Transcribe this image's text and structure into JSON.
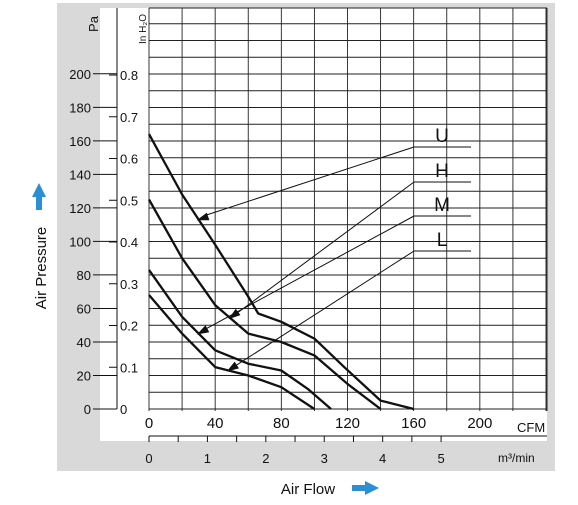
{
  "chart_data": {
    "type": "line",
    "y_axis_label": "Air Pressure",
    "x_axis_label": "Air Flow",
    "pa_unit": "Pa",
    "inh2o_unit": "In H₂O",
    "cfm_unit": "CFM",
    "m3_unit": "m³/min",
    "pa_ticks": [
      "0",
      "20",
      "40",
      "60",
      "80",
      "100",
      "120",
      "140",
      "160",
      "180",
      "200"
    ],
    "inh2o_ticks": [
      "0",
      "0.1",
      "0.2",
      "0.3",
      "0.4",
      "0.5",
      "0.6",
      "0.7",
      "0.8"
    ],
    "cfm_ticks": [
      "0",
      "40",
      "80",
      "120",
      "160",
      "200"
    ],
    "m3_ticks": [
      "0",
      "1",
      "2",
      "3",
      "4",
      "5"
    ],
    "xlim_cfm": [
      0,
      240
    ],
    "ylim_pa": [
      0,
      225
    ],
    "grid": true,
    "series": [
      {
        "name": "U",
        "x": [
          0,
          20,
          40,
          60,
          66,
          80,
          100,
          118,
          140,
          160
        ],
        "y": [
          164,
          128,
          98,
          67,
          57,
          52,
          42,
          25,
          5,
          0
        ]
      },
      {
        "name": "H",
        "x": [
          0,
          20,
          40,
          60,
          80,
          100,
          120,
          140
        ],
        "y": [
          125,
          90,
          62,
          45,
          40,
          32,
          15,
          0
        ]
      },
      {
        "name": "M",
        "x": [
          0,
          20,
          40,
          60,
          80,
          96,
          110
        ],
        "y": [
          83,
          55,
          35,
          27,
          23,
          12,
          0
        ]
      },
      {
        "name": "L",
        "x": [
          0,
          20,
          40,
          60,
          80,
          100
        ],
        "y": [
          68,
          45,
          25,
          20,
          13,
          0
        ]
      }
    ],
    "colors": {
      "line": "#111111",
      "grid": "#222222",
      "panel": "#d9d9d9",
      "arrow": "#2a8fd6"
    }
  }
}
